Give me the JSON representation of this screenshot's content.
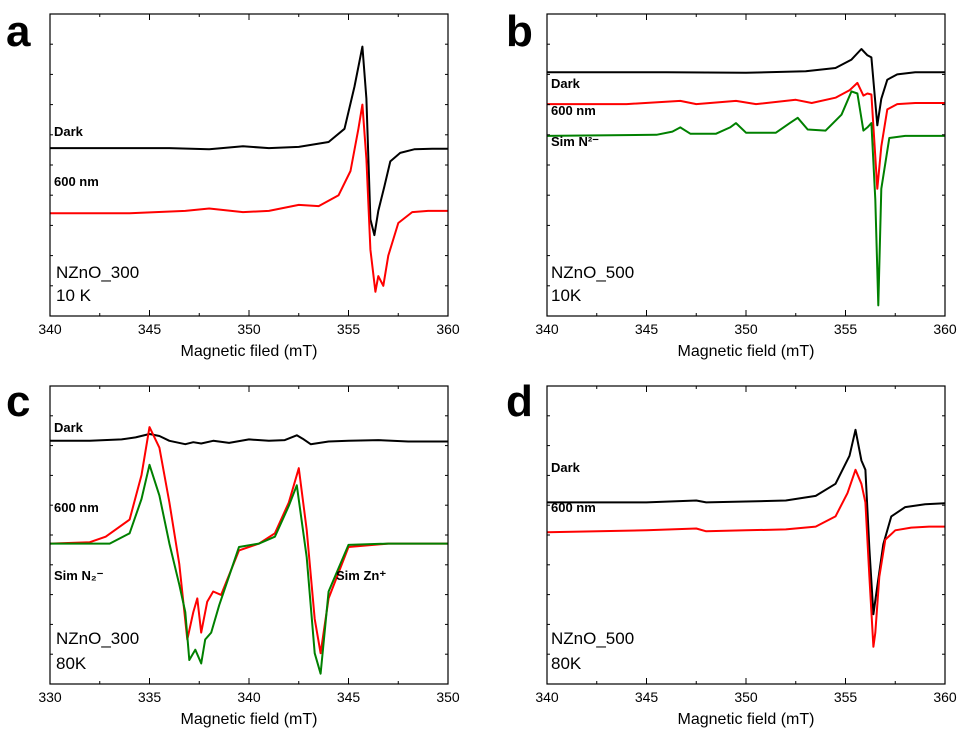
{
  "chart_data": [
    {
      "panel": "a",
      "type": "line",
      "xlabel": "Magnetic filed (mT)",
      "ylabel": "",
      "xlim": [
        340,
        360
      ],
      "xticks": [
        340,
        345,
        350,
        355,
        360
      ],
      "yticks_shown": false,
      "grid": false,
      "sample": [
        "NZnO_300",
        "10 K"
      ],
      "series": [
        {
          "name": "Dark",
          "color": "#000000",
          "x": [
            340,
            344,
            346,
            348,
            349.7,
            351,
            352.5,
            354,
            354.8,
            355.3,
            355.7,
            355.9,
            356.1,
            356.3,
            356.5,
            356.8,
            357.1,
            357.6,
            358.3,
            359.2,
            360
          ],
          "y": [
            0.14,
            0.14,
            0.14,
            0.13,
            0.155,
            0.14,
            0.15,
            0.19,
            0.3,
            0.65,
            0.98,
            0.55,
            -0.45,
            -0.58,
            -0.38,
            -0.18,
            0.03,
            0.1,
            0.13,
            0.135,
            0.135
          ]
        },
        {
          "name": "600 nm",
          "color": "#ff0000",
          "x": [
            340,
            344,
            346.8,
            348,
            349.7,
            351,
            352.5,
            353.5,
            354.5,
            355.1,
            355.5,
            355.7,
            355.9,
            356.1,
            356.35,
            356.5,
            356.75,
            357,
            357.5,
            358.2,
            359,
            360
          ],
          "y": [
            -0.4,
            -0.4,
            -0.38,
            -0.36,
            -0.39,
            -0.38,
            -0.33,
            -0.34,
            -0.25,
            -0.05,
            0.3,
            0.5,
            0.05,
            -0.7,
            -1.05,
            -0.92,
            -1.0,
            -0.75,
            -0.48,
            -0.39,
            -0.38,
            -0.38
          ]
        }
      ]
    },
    {
      "panel": "b",
      "type": "line",
      "xlabel": "Magnetic field (mT)",
      "ylabel": "",
      "xlim": [
        340,
        360
      ],
      "xticks": [
        340,
        345,
        350,
        355,
        360
      ],
      "yticks_shown": false,
      "grid": false,
      "sample": [
        "NZnO_500",
        "10K"
      ],
      "series": [
        {
          "name": "Dark",
          "color": "#000000",
          "x": [
            340,
            346,
            350,
            353,
            354.5,
            355.3,
            355.8,
            356.1,
            356.3,
            356.6,
            356.8,
            357.1,
            357.6,
            358.5,
            360
          ],
          "y": [
            0.6,
            0.6,
            0.595,
            0.61,
            0.64,
            0.72,
            0.82,
            0.76,
            0.74,
            0.1,
            0.35,
            0.53,
            0.58,
            0.6,
            0.6
          ]
        },
        {
          "name": "600 nm",
          "color": "#ff0000",
          "x": [
            340,
            344,
            346.7,
            347.5,
            349.5,
            350.5,
            352.5,
            353.3,
            354.5,
            355.2,
            355.6,
            355.9,
            356.1,
            356.3,
            356.6,
            356.8,
            357.1,
            357.6,
            358.5,
            360
          ],
          "y": [
            0.3,
            0.3,
            0.33,
            0.3,
            0.33,
            0.3,
            0.34,
            0.31,
            0.36,
            0.43,
            0.5,
            0.38,
            0.4,
            0.39,
            -0.5,
            -0.1,
            0.25,
            0.3,
            0.31,
            0.31
          ]
        },
        {
          "name": "Sim N²⁻",
          "color": "#008000",
          "x": [
            340,
            345.5,
            346.3,
            346.7,
            347.2,
            348.5,
            349.2,
            349.5,
            350,
            351.5,
            352.2,
            352.6,
            353.1,
            354,
            354.8,
            355.3,
            355.6,
            355.9,
            356.1,
            356.3,
            356.5,
            356.65,
            356.8,
            357.2,
            358,
            360
          ],
          "y": [
            0.0,
            0.01,
            0.04,
            0.08,
            0.02,
            0.02,
            0.08,
            0.12,
            0.03,
            0.03,
            0.12,
            0.17,
            0.06,
            0.05,
            0.2,
            0.42,
            0.4,
            0.05,
            0.08,
            0.12,
            -0.6,
            -1.6,
            -0.5,
            -0.02,
            0.0,
            0.0
          ]
        }
      ]
    },
    {
      "panel": "c",
      "type": "line",
      "xlabel": "Magnetic field (mT)",
      "ylabel": "",
      "xlim": [
        330,
        350
      ],
      "xticks": [
        330,
        335,
        340,
        345,
        350
      ],
      "yticks_shown": false,
      "grid": false,
      "sample": [
        "NZnO_300",
        "80K"
      ],
      "annotations": [
        "Sim Zn⁺"
      ],
      "series": [
        {
          "name": "Dark",
          "color": "#000000",
          "x": [
            330,
            332,
            333.6,
            334.3,
            335,
            335.5,
            336,
            336.8,
            337.2,
            337.6,
            338.2,
            339,
            340,
            341,
            341.8,
            342.4,
            342.7,
            343.1,
            344,
            345,
            346.5,
            348,
            350
          ],
          "y": [
            1.5,
            1.5,
            1.52,
            1.55,
            1.6,
            1.57,
            1.5,
            1.45,
            1.48,
            1.46,
            1.5,
            1.47,
            1.52,
            1.5,
            1.51,
            1.58,
            1.53,
            1.45,
            1.49,
            1.5,
            1.51,
            1.49,
            1.49
          ]
        },
        {
          "name": "600 nm",
          "color": "#ff0000",
          "x": [
            330,
            332,
            332.8,
            334,
            334.6,
            335,
            335.5,
            336,
            336.5,
            336.9,
            337.2,
            337.4,
            337.6,
            337.9,
            338.2,
            338.6,
            339.5,
            340.5,
            341.3,
            342,
            342.5,
            342.9,
            343.3,
            343.6,
            344,
            345,
            347,
            350
          ],
          "y": [
            0.0,
            0.02,
            0.1,
            0.35,
            1.0,
            1.7,
            1.4,
            0.6,
            -0.3,
            -1.4,
            -1.0,
            -0.8,
            -1.3,
            -0.85,
            -0.7,
            -0.75,
            -0.1,
            0.0,
            0.15,
            0.6,
            1.1,
            0.2,
            -1.1,
            -1.6,
            -0.8,
            -0.05,
            0.0,
            0.0
          ]
        },
        {
          "name": "Sim N₂⁻",
          "color": "#008000",
          "x": [
            330,
            333,
            334,
            334.6,
            335,
            335.5,
            336,
            336.5,
            336.8,
            337,
            337.3,
            337.6,
            337.8,
            338.1,
            338.5,
            339.5,
            340.5,
            341.3,
            342,
            342.4,
            342.9,
            343.3,
            343.6,
            344,
            345,
            347,
            350
          ],
          "y": [
            0.0,
            0.0,
            0.15,
            0.65,
            1.15,
            0.7,
            0.0,
            -0.6,
            -1.0,
            -1.7,
            -1.55,
            -1.75,
            -1.4,
            -1.3,
            -0.9,
            -0.05,
            0.0,
            0.1,
            0.55,
            0.85,
            -0.2,
            -1.6,
            -1.9,
            -0.7,
            -0.02,
            0.0,
            0.0
          ]
        }
      ]
    },
    {
      "panel": "d",
      "type": "line",
      "xlabel": "Magnetic field (mT)",
      "ylabel": "",
      "xlim": [
        340,
        360
      ],
      "xticks": [
        340,
        345,
        350,
        355,
        360
      ],
      "yticks_shown": false,
      "grid": false,
      "sample": [
        "NZnO_500",
        "80K"
      ],
      "series": [
        {
          "name": "Dark",
          "color": "#000000",
          "x": [
            340,
            345,
            347.5,
            348,
            350,
            352,
            353.5,
            354.5,
            355.2,
            355.5,
            355.8,
            356.0,
            356.2,
            356.4,
            356.6,
            356.9,
            357.3,
            358,
            359,
            360
          ],
          "y": [
            0.2,
            0.2,
            0.22,
            0.2,
            0.21,
            0.22,
            0.27,
            0.4,
            0.7,
            0.98,
            0.65,
            0.55,
            -0.3,
            -1.0,
            -0.7,
            -0.25,
            0.05,
            0.15,
            0.18,
            0.19
          ]
        },
        {
          "name": "600 nm",
          "color": "#ff0000",
          "x": [
            340,
            345,
            347.5,
            348,
            350,
            352,
            353.5,
            354.5,
            355.1,
            355.5,
            355.8,
            356.0,
            356.2,
            356.4,
            356.5,
            356.7,
            357.0,
            357.5,
            358.3,
            359.2,
            360
          ],
          "y": [
            -0.12,
            -0.1,
            -0.08,
            -0.11,
            -0.1,
            -0.09,
            -0.06,
            0.05,
            0.3,
            0.55,
            0.4,
            0.2,
            -0.6,
            -1.35,
            -1.2,
            -0.6,
            -0.2,
            -0.1,
            -0.07,
            -0.06,
            -0.06
          ]
        }
      ]
    }
  ]
}
